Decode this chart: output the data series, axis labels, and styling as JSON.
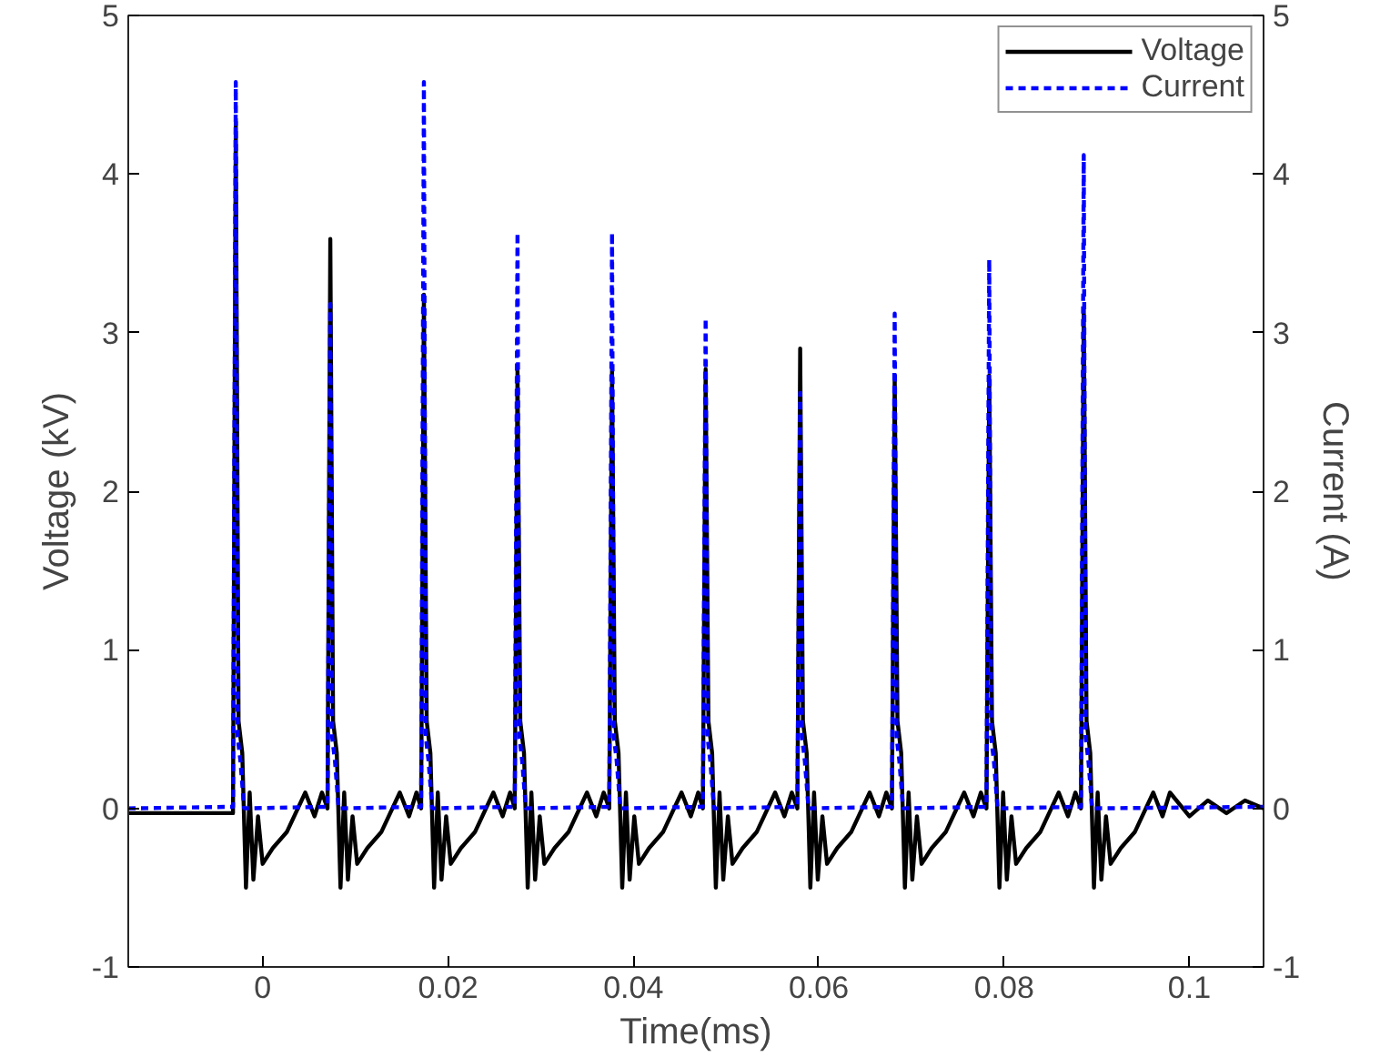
{
  "chart_data": {
    "type": "line",
    "xlabel": "Time(ms)",
    "ylabel": "Voltage (kV)",
    "y2label": "Current (A)",
    "xlim": [
      -0.0145,
      0.108
    ],
    "xticks": [
      0,
      0.02,
      0.04,
      0.06,
      0.08,
      0.1
    ],
    "ylim": [
      -1,
      5
    ],
    "yticks": [
      -1,
      0,
      1,
      2,
      3,
      4,
      5
    ],
    "y2lim": [
      -1,
      5
    ],
    "y2ticks": [
      -1,
      0,
      1,
      2,
      3,
      4,
      5
    ],
    "grid": false,
    "legend": "top right",
    "marker": "none",
    "series": [
      {
        "name": "Voltage",
        "color": "#000000",
        "line_style": "solid",
        "x": [
          -0.0145,
          -0.0032,
          -0.0029,
          -0.0026,
          -0.0022,
          -0.0018,
          -0.0014,
          -0.001,
          -0.0005,
          0.0,
          0.0011,
          0.0026,
          0.0046,
          0.0056,
          0.0064,
          0.007,
          0.0073,
          0.0076,
          0.008,
          0.0084,
          0.0088,
          0.0092,
          0.0097,
          0.0102,
          0.0113,
          0.0128,
          0.0148,
          0.0158,
          0.0166,
          0.0171,
          0.0174,
          0.0177,
          0.0181,
          0.0185,
          0.0189,
          0.0193,
          0.0198,
          0.0203,
          0.0214,
          0.0229,
          0.0249,
          0.0259,
          0.0267,
          0.0272,
          0.0275,
          0.0278,
          0.0282,
          0.0286,
          0.029,
          0.0294,
          0.0299,
          0.0304,
          0.0315,
          0.033,
          0.035,
          0.036,
          0.0368,
          0.0374,
          0.0377,
          0.038,
          0.0384,
          0.0388,
          0.0392,
          0.0396,
          0.0401,
          0.0406,
          0.0417,
          0.0432,
          0.0452,
          0.0462,
          0.047,
          0.0475,
          0.0478,
          0.0481,
          0.0485,
          0.0489,
          0.0493,
          0.0497,
          0.0502,
          0.0507,
          0.0518,
          0.0533,
          0.0553,
          0.0563,
          0.0571,
          0.0577,
          0.058,
          0.0583,
          0.0587,
          0.0591,
          0.0595,
          0.0599,
          0.0604,
          0.0609,
          0.062,
          0.0635,
          0.0655,
          0.0665,
          0.0673,
          0.0679,
          0.0682,
          0.0685,
          0.0689,
          0.0693,
          0.0697,
          0.0701,
          0.0706,
          0.0711,
          0.0722,
          0.0737,
          0.0757,
          0.0767,
          0.0775,
          0.0781,
          0.0784,
          0.0787,
          0.0791,
          0.0795,
          0.0799,
          0.0803,
          0.0808,
          0.0813,
          0.0824,
          0.0839,
          0.0859,
          0.0869,
          0.0877,
          0.0883,
          0.0886,
          0.0889,
          0.0893,
          0.0897,
          0.0901,
          0.0905,
          0.091,
          0.0915,
          0.0926,
          0.0941,
          0.0961,
          0.0971,
          0.0979,
          0.1,
          0.102,
          0.104,
          0.106,
          0.108
        ],
        "values": [
          -0.03,
          -0.03,
          4.33,
          0.55,
          0.35,
          -0.5,
          0.1,
          -0.45,
          -0.05,
          -0.35,
          -0.25,
          -0.15,
          0.1,
          -0.05,
          0.1,
          0.0,
          3.59,
          0.55,
          0.35,
          -0.5,
          0.1,
          -0.45,
          -0.05,
          -0.35,
          -0.25,
          -0.15,
          0.1,
          -0.05,
          0.1,
          0.0,
          3.24,
          0.55,
          0.35,
          -0.5,
          0.1,
          -0.45,
          -0.05,
          -0.35,
          -0.25,
          -0.15,
          0.1,
          -0.05,
          0.1,
          0.0,
          2.77,
          0.55,
          0.35,
          -0.5,
          0.1,
          -0.45,
          -0.05,
          -0.35,
          -0.25,
          -0.15,
          0.1,
          -0.05,
          0.1,
          0.0,
          2.77,
          0.55,
          0.35,
          -0.5,
          0.1,
          -0.45,
          -0.05,
          -0.35,
          -0.25,
          -0.15,
          0.1,
          -0.05,
          0.1,
          0.0,
          2.77,
          0.55,
          0.35,
          -0.5,
          0.1,
          -0.45,
          -0.05,
          -0.35,
          -0.25,
          -0.15,
          0.1,
          -0.05,
          0.1,
          0.0,
          2.9,
          0.55,
          0.35,
          -0.5,
          0.1,
          -0.45,
          -0.05,
          -0.35,
          -0.25,
          -0.15,
          0.1,
          -0.05,
          0.1,
          0.0,
          2.73,
          0.55,
          0.35,
          -0.5,
          0.1,
          -0.45,
          -0.05,
          -0.35,
          -0.25,
          -0.15,
          0.1,
          -0.05,
          0.1,
          0.0,
          2.73,
          0.55,
          0.35,
          -0.5,
          0.1,
          -0.45,
          -0.05,
          -0.35,
          -0.25,
          -0.15,
          0.1,
          -0.05,
          0.1,
          0.0,
          3.15,
          0.55,
          0.35,
          -0.5,
          0.1,
          -0.45,
          -0.05,
          -0.35,
          -0.25,
          -0.15,
          0.1,
          -0.05,
          0.1,
          -0.05,
          0.05,
          -0.03,
          0.05,
          0.0
        ]
      },
      {
        "name": "Current",
        "color": "#0000ff",
        "line_style": "dashed",
        "x": [
          -0.0145,
          -0.0032,
          -0.0029,
          -0.0027,
          -0.0024,
          -0.002,
          0.007,
          0.0073,
          0.0075,
          0.0078,
          0.0082,
          0.0171,
          0.0174,
          0.0176,
          0.0179,
          0.0183,
          0.0272,
          0.0275,
          0.0277,
          0.028,
          0.0284,
          0.0374,
          0.0377,
          0.0379,
          0.0382,
          0.0386,
          0.0475,
          0.0478,
          0.048,
          0.0483,
          0.0487,
          0.0577,
          0.058,
          0.0582,
          0.0585,
          0.0589,
          0.0679,
          0.0682,
          0.0684,
          0.0687,
          0.0691,
          0.0781,
          0.0784,
          0.0786,
          0.0789,
          0.0793,
          0.0883,
          0.0886,
          0.0888,
          0.0891,
          0.0895,
          0.108
        ],
        "values": [
          0.0,
          0.01,
          4.58,
          0.45,
          0.3,
          0.0,
          0.01,
          3.18,
          0.45,
          0.3,
          0.0,
          0.01,
          4.58,
          0.45,
          0.3,
          0.0,
          0.01,
          3.63,
          0.45,
          0.3,
          0.0,
          0.01,
          3.63,
          0.45,
          0.3,
          0.0,
          0.01,
          3.09,
          0.45,
          0.3,
          0.0,
          0.01,
          2.62,
          0.45,
          0.3,
          0.0,
          0.01,
          3.12,
          0.45,
          0.3,
          0.0,
          0.01,
          3.46,
          0.45,
          0.3,
          0.0,
          0.01,
          4.12,
          0.45,
          0.3,
          0.0,
          0.01
        ]
      }
    ]
  }
}
